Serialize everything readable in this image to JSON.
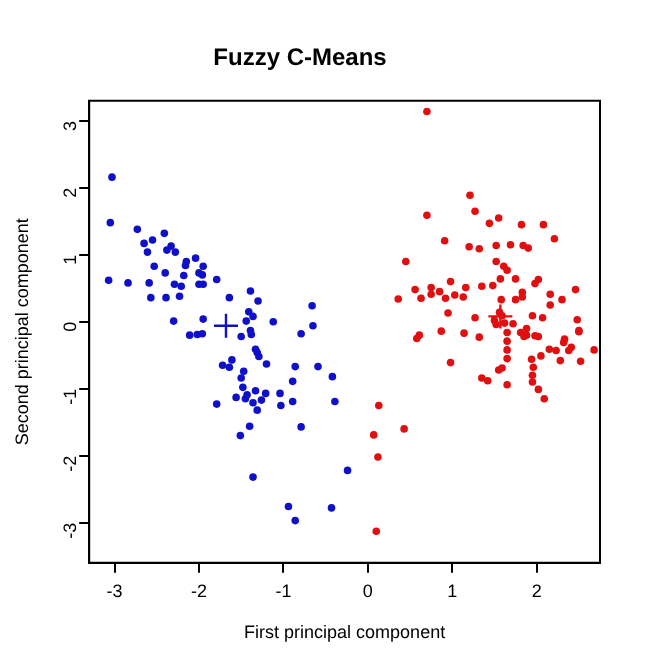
{
  "chart_data": {
    "type": "scatter",
    "title": "Fuzzy C-Means",
    "xlabel": "First principal component",
    "ylabel": "Second principal component",
    "xlim": [
      -3.3,
      2.75
    ],
    "ylim": [
      -3.6,
      3.3
    ],
    "xticks": [
      -3,
      -2,
      -1,
      0,
      1,
      2
    ],
    "yticks": [
      -3,
      -2,
      -1,
      0,
      1,
      2,
      3
    ],
    "grid": false,
    "legend": false,
    "marker": "circle",
    "series": [
      {
        "color": "#1010c8",
        "x": [
          -3.03,
          -3.05,
          -2.73,
          -2.41,
          -2.55,
          -2.65,
          -2.38,
          -2.33,
          -2.28,
          -2.61,
          -2.04,
          -2.15,
          -2.16,
          -1.95,
          -2.53,
          -2.0,
          -1.96,
          -2.4,
          -2.18,
          -3.07,
          -2.84,
          -2.59,
          -2.29,
          -2.21,
          -2.0,
          -1.95,
          -1.79,
          -1.39,
          -2.57,
          -2.39,
          -2.23,
          -1.64,
          -1.3,
          -0.66,
          -1.41,
          -1.36,
          -2.3,
          -1.95,
          -1.44,
          -1.12,
          -0.65,
          -0.79,
          -2.11,
          -2.02,
          -1.96,
          -1.5,
          -1.38,
          -1.39,
          -1.33,
          -1.31,
          -1.29,
          -1.61,
          -1.72,
          -1.64,
          -1.2,
          -0.86,
          -0.59,
          -1.47,
          -1.5,
          -0.89,
          -0.42,
          -1.48,
          -1.33,
          -1.21,
          -1.43,
          -1.45,
          -1.04,
          -1.56,
          -1.26,
          -1.36,
          -0.89,
          -0.39,
          -1.79,
          -1.03,
          -1.31,
          -0.79,
          -1.4,
          -1.51,
          -0.24,
          -1.36,
          -0.94,
          -0.43,
          -0.86
        ],
        "values": [
          2.16,
          1.48,
          1.38,
          1.32,
          1.22,
          1.17,
          1.07,
          1.13,
          1.04,
          1.04,
          0.95,
          0.9,
          0.84,
          0.83,
          0.83,
          0.73,
          0.7,
          0.73,
          0.69,
          0.62,
          0.58,
          0.58,
          0.56,
          0.53,
          0.56,
          0.56,
          0.63,
          0.46,
          0.36,
          0.36,
          0.38,
          0.36,
          0.31,
          0.24,
          0.15,
          0.08,
          0.01,
          0.04,
          0.01,
          0,
          -0.06,
          -0.18,
          -0.2,
          -0.19,
          -0.18,
          -0.22,
          -0.19,
          -0.13,
          -0.41,
          -0.46,
          -0.52,
          -0.57,
          -0.65,
          -0.68,
          -0.63,
          -0.67,
          -0.67,
          -0.74,
          -0.84,
          -0.89,
          -0.82,
          -0.98,
          -1.03,
          -1.07,
          -1.09,
          -1.15,
          -1.07,
          -1.13,
          -1.17,
          -1.21,
          -1.19,
          -1.19,
          -1.23,
          -1.25,
          -1.32,
          -1.57,
          -1.56,
          -1.7,
          -2.22,
          -2.32,
          -2.76,
          -2.78,
          -2.97
        ]
      },
      {
        "color": "#e01010",
        "x": [
          0.13,
          0.07,
          0.12,
          0.1,
          0.43,
          0.7,
          1.21,
          0.7,
          1.27,
          1.55,
          1.44,
          1.82,
          2.08,
          2.21,
          0.91,
          1.2,
          1.32,
          1.52,
          1.69,
          1.84,
          1.9,
          0.45,
          1.52,
          1.61,
          1.65,
          1.57,
          1.75,
          0.98,
          2.02,
          1.98,
          2.46,
          0.56,
          0.75,
          0.85,
          1.16,
          1.35,
          1.48,
          0.75,
          0.63,
          0.36,
          0.92,
          1.03,
          1.13,
          1.58,
          1.83,
          1.83,
          1.75,
          2.16,
          2.3,
          2.16,
          0.95,
          1.56,
          1.59,
          1.27,
          1.95,
          2.07,
          2.48,
          1.5,
          0.87,
          1.14,
          1.32,
          1.81,
          1.88,
          1.98,
          2.5,
          2.33,
          0.61,
          0.58,
          1.52,
          1.62,
          1.72,
          1.65,
          1.65,
          1.65,
          1.85,
          1.88,
          2.02,
          2.05,
          2.15,
          2.23,
          2.32,
          2.41,
          2.38,
          2.5,
          2.68,
          2.28,
          2.52,
          1.94,
          1.96,
          1.95,
          1.95,
          2.02,
          2.09,
          0.98,
          1.35,
          1.42,
          1.55,
          1.59,
          1.65,
          1.65
        ],
        "values": [
          -1.25,
          -1.69,
          -2.02,
          -3.13,
          -1.6,
          3.14,
          1.89,
          1.59,
          1.65,
          1.55,
          1.47,
          1.45,
          1.45,
          1.24,
          1.21,
          1.12,
          1.09,
          1.14,
          1.15,
          1.14,
          1.1,
          0.9,
          0.9,
          0.83,
          0.77,
          0.64,
          0.64,
          0.6,
          0.63,
          0.57,
          0.48,
          0.48,
          0.51,
          0.45,
          0.51,
          0.53,
          0.54,
          0.41,
          0.35,
          0.34,
          0.35,
          0.4,
          0.37,
          0.33,
          0.44,
          0.37,
          0.33,
          0.41,
          0.33,
          0.25,
          0.13,
          0.14,
          0.09,
          0.06,
          0.09,
          0.06,
          0.03,
          0.02,
          -0.14,
          -0.17,
          -0.23,
          -0.16,
          -0.2,
          -0.21,
          -0.13,
          -0.26,
          -0.2,
          -0.25,
          -0.04,
          -0.02,
          -0.03,
          -0.16,
          -0.29,
          -0.42,
          -0.22,
          -0.1,
          -0.22,
          -0.51,
          -0.41,
          -0.43,
          -0.31,
          -0.38,
          -0.43,
          -0.15,
          -0.42,
          -0.58,
          -0.59,
          -0.56,
          -0.68,
          -0.8,
          -0.9,
          -1.01,
          -1.15,
          -0.61,
          -0.84,
          -0.88,
          -0.72,
          -0.69,
          -0.55,
          -0.94
        ]
      },
      {
        "color": "#1010c8",
        "marker": "cross",
        "x": [
          -1.68
        ],
        "values": [
          -0.06
        ]
      },
      {
        "color": "#e01010",
        "marker": "cross",
        "x": [
          1.57
        ],
        "values": [
          0.08
        ]
      }
    ]
  }
}
